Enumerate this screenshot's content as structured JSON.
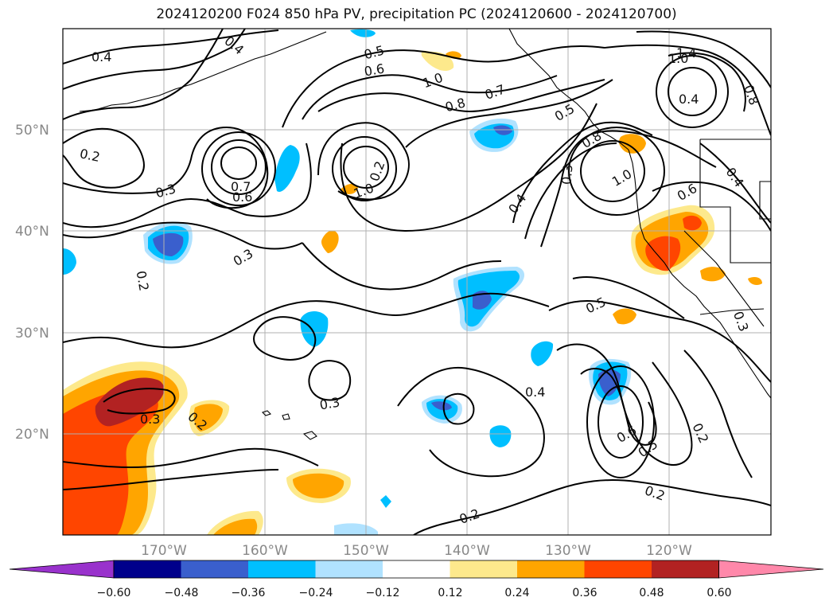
{
  "title": "2024120200 F024 850 hPa PV, precipitation PC (2024120600 - 2024120700)",
  "map": {
    "lon_range": [
      -180,
      -110
    ],
    "lat_range": [
      10,
      60
    ],
    "lon_ticks": [
      "170°W",
      "160°W",
      "150°W",
      "140°W",
      "130°W",
      "120°W"
    ],
    "lat_ticks": [
      "50°N",
      "40°N",
      "30°N",
      "20°N"
    ],
    "grid": true,
    "contour_labels": [
      "0.4",
      "0.4",
      "0.5",
      "0.6",
      "1.0",
      "1.4",
      "1.0",
      "0.8",
      "0.7",
      "0.5",
      "0.4",
      "0.8",
      "0.2",
      "0.7",
      "0.6",
      "0.3",
      "1.0",
      "0.2",
      "0.8",
      "1.0",
      "0.6",
      "0.4",
      "0.4",
      "0.3",
      "0.2",
      "0.5",
      "0.3",
      "0.3",
      "0.2",
      "0.3",
      "0.4",
      "0.6",
      "0.5",
      "0.2",
      "0.2",
      "0.2",
      "0.3"
    ]
  },
  "colorbar": {
    "colors": [
      "#9932cc",
      "#00008b",
      "#3a5fcd",
      "#00bfff",
      "#b0e2ff",
      "#ffffff",
      "#fde98c",
      "#ffa500",
      "#ff4500",
      "#b22222",
      "#ff88aa"
    ],
    "ticks": [
      "−0.60",
      "−0.48",
      "−0.36",
      "−0.24",
      "−0.12",
      "0.12",
      "0.24",
      "0.36",
      "0.48",
      "0.60"
    ]
  }
}
